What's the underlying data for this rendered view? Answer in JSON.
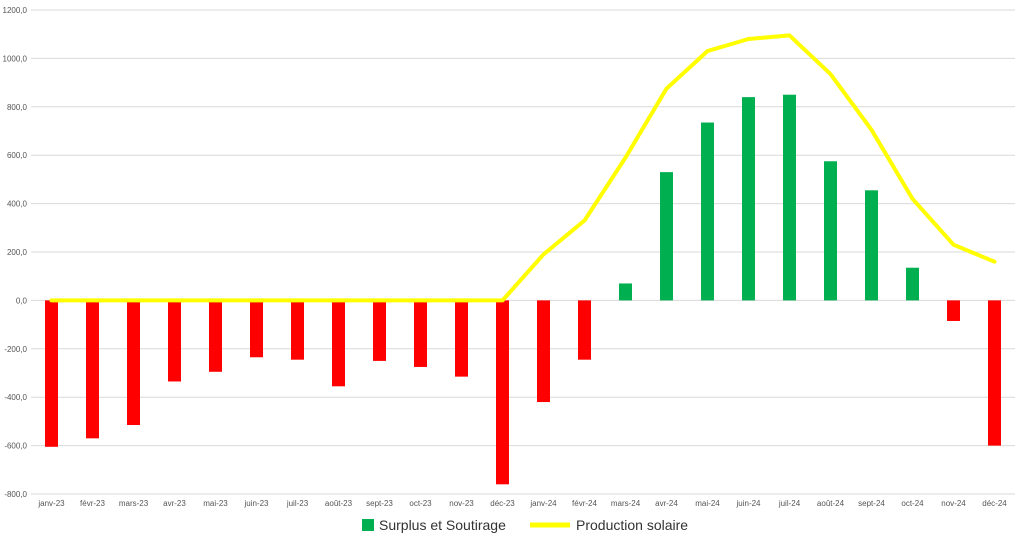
{
  "chart_data": {
    "type": "bar",
    "categories": [
      "janv-23",
      "févr-23",
      "mars-23",
      "avr-23",
      "mai-23",
      "juin-23",
      "juil-23",
      "août-23",
      "sept-23",
      "oct-23",
      "nov-23",
      "déc-23",
      "janv-24",
      "févr-24",
      "mars-24",
      "avr-24",
      "mai-24",
      "juin-24",
      "juil-24",
      "août-24",
      "sept-24",
      "oct-24",
      "nov-24",
      "déc-24"
    ],
    "series": [
      {
        "name": "Surplus et Soutirage",
        "kind": "bar",
        "values": [
          -605,
          -570,
          -515,
          -335,
          -295,
          -235,
          -245,
          -355,
          -250,
          -275,
          -315,
          -760,
          -420,
          -245,
          70,
          530,
          735,
          840,
          850,
          575,
          455,
          135,
          -85,
          -600
        ],
        "color_positive": "#00B050",
        "color_negative": "#FF0000",
        "legend_color": "#00B050"
      },
      {
        "name": "Production solaire",
        "kind": "line",
        "values": [
          0,
          0,
          0,
          0,
          0,
          0,
          0,
          0,
          0,
          0,
          0,
          0,
          190,
          330,
          590,
          875,
          1030,
          1080,
          1095,
          935,
          705,
          420,
          230,
          160
        ],
        "color": "#FFFF00"
      }
    ],
    "yticks": [
      "-800,0",
      "-600,0",
      "-400,0",
      "-200,0",
      "0,0",
      "200,0",
      "400,0",
      "600,0",
      "800,0",
      "1000,0",
      "1200,0"
    ],
    "ylim": [
      -800,
      1200
    ],
    "grid": true,
    "legend_position": "bottom",
    "title": "",
    "xlabel": "",
    "ylabel": ""
  }
}
